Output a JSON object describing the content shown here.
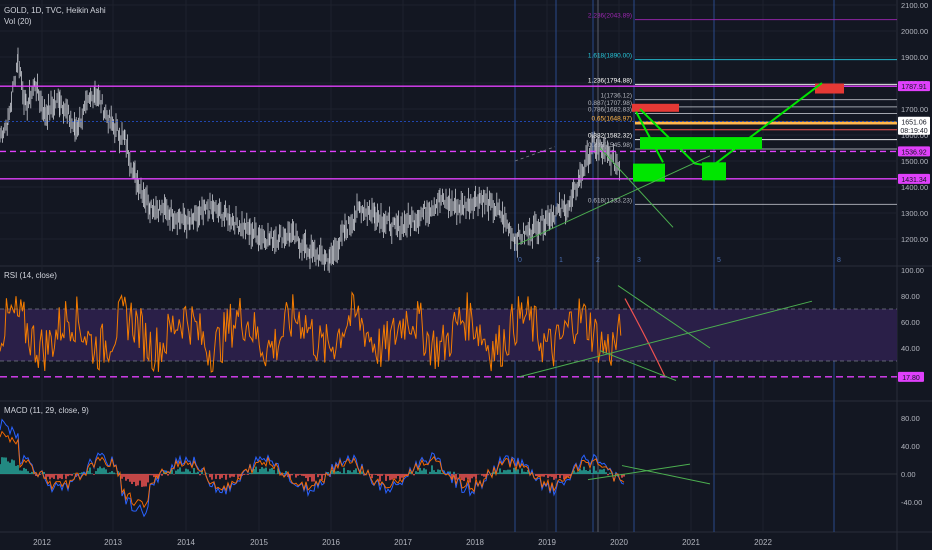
{
  "panels": {
    "price": {
      "symbol": "GOLD, 1D, TVC, Heikin Ashi",
      "volume": "Vol (20)",
      "axis_ticks": [
        "2100.00",
        "2000.00",
        "1900.00",
        "1800.00",
        "1700.00",
        "1600.00",
        "1500.00",
        "1400.00",
        "1300.00",
        "1200.00"
      ],
      "price_labels": [
        {
          "text": "1787.91",
          "value": 1787.91,
          "color": "#e040fb",
          "text_color": "#131722"
        },
        {
          "text": "1651.06",
          "value": 1651.06,
          "color": "#ffffff",
          "text_color": "#131722"
        },
        {
          "text": "08:19:40",
          "value": 1620,
          "color": "#ffffff",
          "text_color": "#131722"
        },
        {
          "text": "1536.92",
          "value": 1536.92,
          "color": "#e040fb",
          "text_color": "#131722"
        },
        {
          "text": "1431.34",
          "value": 1431.34,
          "color": "#e040fb",
          "text_color": "#131722"
        }
      ],
      "fib_labels": [
        {
          "text": "2.236(2043.89)",
          "value": 2043.89,
          "color": "#9c27b0"
        },
        {
          "text": "1.618(1890.00)",
          "value": 1890.0,
          "color": "#26c6da"
        },
        {
          "text": "1.236(1794.88)",
          "value": 1794.88,
          "color": "#ffffff"
        },
        {
          "text": "1(1736.12)",
          "value": 1736.12,
          "color": "#b2b5be"
        },
        {
          "text": "0.887(1707.98)",
          "value": 1707.98,
          "color": "#b2b5be"
        },
        {
          "text": "0.786(1682.83)",
          "value": 1682.83,
          "color": "#b2b5be"
        },
        {
          "text": "0.65(1648.97)",
          "value": 1648.97,
          "color": "#ffb74d"
        },
        {
          "text": "0.382(1582.32)",
          "value": 1582.32,
          "color": "#ffffff"
        },
        {
          "text": "0.236(1545.98)",
          "value": 1545.98,
          "color": "#b2b5be"
        },
        {
          "text": "0.618(1333.23)",
          "value": 1333.23,
          "color": "#b2b5be"
        }
      ],
      "wave_labels": [
        "0",
        "1",
        "2",
        "3",
        "5",
        "8"
      ]
    },
    "rsi": {
      "title": "RSI (14, close)",
      "axis_ticks": [
        "100.00",
        "80.00",
        "60.00",
        "40.00",
        "20.00"
      ],
      "level_label": "17.80",
      "level_color": "#e040fb"
    },
    "macd": {
      "title": "MACD (11, 29, close, 9)",
      "axis_ticks": [
        "80.00",
        "40.00",
        "0.00",
        "-40.00"
      ]
    }
  },
  "time_axis": [
    "2012",
    "2013",
    "2014",
    "2015",
    "2016",
    "2017",
    "2018",
    "2019",
    "2020",
    "2021",
    "2022"
  ],
  "colors": {
    "background": "#131722",
    "grid": "#1e222d",
    "magenta": "#e040fb",
    "price_line": "#d1d4dc",
    "rsi_line": "#f57c00",
    "rsi_band": "#2a1f48",
    "macd_line": "#2962ff",
    "signal_line": "#ff6d00",
    "hist_pos": "#26a69a",
    "hist_neg": "#ef5350",
    "trend": "#4caf50",
    "green_box": "#00e600",
    "red_box": "#e53935"
  },
  "chart_data": [
    {
      "type": "line",
      "title": "GOLD, 1D, TVC, Heikin Ashi",
      "x": [
        "2012",
        "2013",
        "2014",
        "2015",
        "2016",
        "2017",
        "2018",
        "2019",
        "2020"
      ],
      "series": [
        {
          "values": [
            1650,
            1550,
            1230,
            1180,
            1250,
            1220,
            1300,
            1290,
            1600
          ]
        }
      ],
      "ylim": [
        1150,
        2100
      ]
    },
    {
      "type": "line",
      "title": "RSI (14, close)",
      "x": [
        "2012",
        "2013",
        "2014",
        "2015",
        "2016",
        "2017",
        "2018",
        "2019",
        "2020"
      ],
      "series": [
        {
          "values": [
            55,
            50,
            45,
            50,
            58,
            50,
            45,
            60,
            70
          ]
        }
      ],
      "ylim": [
        10,
        100
      ]
    },
    {
      "type": "line",
      "title": "MACD (11, 29, close, 9)",
      "x": [
        "2012",
        "2013",
        "2014",
        "2015",
        "2016",
        "2017",
        "2018",
        "2019",
        "2020"
      ],
      "series": [
        {
          "values": [
            60,
            -40,
            -20,
            -10,
            20,
            0,
            -10,
            20,
            30
          ]
        }
      ],
      "ylim": [
        -60,
        100
      ]
    }
  ]
}
